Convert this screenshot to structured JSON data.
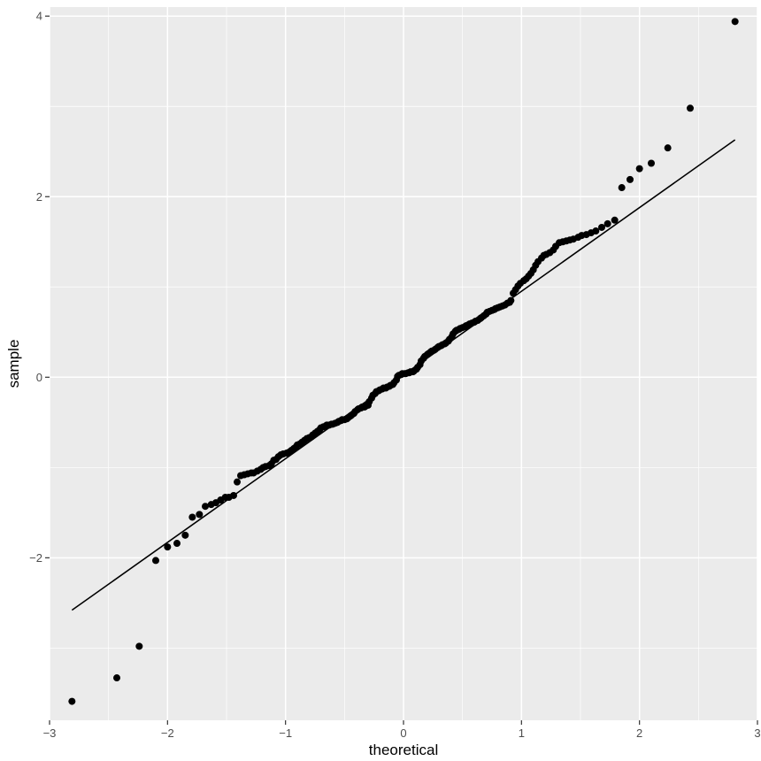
{
  "chart_data": {
    "type": "scatter",
    "subtype": "qq-plot",
    "title": "",
    "xlabel": "theoretical",
    "ylabel": "sample",
    "xlim": [
      -3.0,
      3.0
    ],
    "ylim": [
      -3.8,
      4.1
    ],
    "x_ticks": [
      -3,
      -2,
      -1,
      0,
      1,
      2,
      3
    ],
    "x_tick_labels": [
      "−3",
      "−2",
      "−1",
      "0",
      "1",
      "2",
      "3"
    ],
    "y_ticks": [
      -2,
      0,
      2,
      4
    ],
    "y_tick_labels": [
      "−2",
      "0",
      "2",
      "4"
    ],
    "grid": true,
    "legend": "none",
    "colors": {
      "panel": "#ebebeb",
      "grid": "#ffffff",
      "points": "#000000",
      "line": "#000000"
    },
    "reference_line": {
      "x": [
        -2.81,
        2.81
      ],
      "y": [
        -2.58,
        2.63
      ]
    },
    "points": [
      [
        -2.81,
        -3.59
      ],
      [
        -2.43,
        -3.33
      ],
      [
        -2.24,
        -2.98
      ],
      [
        -2.1,
        -2.03
      ],
      [
        -2.0,
        -1.88
      ],
      [
        -1.92,
        -1.84
      ],
      [
        -1.85,
        -1.75
      ],
      [
        -1.79,
        -1.55
      ],
      [
        -1.73,
        -1.52
      ],
      [
        -1.68,
        -1.43
      ],
      [
        -1.63,
        -1.41
      ],
      [
        -1.59,
        -1.39
      ],
      [
        -1.55,
        -1.36
      ],
      [
        -1.51,
        -1.33
      ],
      [
        -1.48,
        -1.33
      ],
      [
        -1.44,
        -1.31
      ],
      [
        -1.41,
        -1.16
      ],
      [
        -1.38,
        -1.09
      ],
      [
        -1.35,
        -1.08
      ],
      [
        -1.32,
        -1.07
      ],
      [
        -1.29,
        -1.06
      ],
      [
        -1.27,
        -1.06
      ],
      [
        -1.24,
        -1.04
      ],
      [
        -1.21,
        -1.02
      ],
      [
        -1.19,
        -1.0
      ],
      [
        -1.17,
        -0.99
      ],
      [
        -1.14,
        -0.98
      ],
      [
        -1.12,
        -0.96
      ],
      [
        -1.1,
        -0.92
      ],
      [
        -1.08,
        -0.91
      ],
      [
        -1.06,
        -0.88
      ],
      [
        -1.04,
        -0.86
      ],
      [
        -1.02,
        -0.85
      ],
      [
        -0.99,
        -0.84
      ],
      [
        -0.97,
        -0.83
      ],
      [
        -0.95,
        -0.81
      ],
      [
        -0.93,
        -0.79
      ],
      [
        -0.91,
        -0.77
      ],
      [
        -0.9,
        -0.75
      ],
      [
        -0.88,
        -0.74
      ],
      [
        -0.86,
        -0.72
      ],
      [
        -0.84,
        -0.7
      ],
      [
        -0.82,
        -0.68
      ],
      [
        -0.8,
        -0.67
      ],
      [
        -0.78,
        -0.66
      ],
      [
        -0.77,
        -0.64
      ],
      [
        -0.75,
        -0.62
      ],
      [
        -0.73,
        -0.6
      ],
      [
        -0.71,
        -0.58
      ],
      [
        -0.7,
        -0.56
      ],
      [
        -0.68,
        -0.55
      ],
      [
        -0.66,
        -0.54
      ],
      [
        -0.65,
        -0.53
      ],
      [
        -0.63,
        -0.53
      ],
      [
        -0.61,
        -0.52
      ],
      [
        -0.6,
        -0.52
      ],
      [
        -0.58,
        -0.51
      ],
      [
        -0.56,
        -0.5
      ],
      [
        -0.55,
        -0.49
      ],
      [
        -0.53,
        -0.48
      ],
      [
        -0.52,
        -0.47
      ],
      [
        -0.5,
        -0.47
      ],
      [
        -0.48,
        -0.46
      ],
      [
        -0.47,
        -0.45
      ],
      [
        -0.45,
        -0.43
      ],
      [
        -0.44,
        -0.42
      ],
      [
        -0.42,
        -0.4
      ],
      [
        -0.41,
        -0.38
      ],
      [
        -0.39,
        -0.36
      ],
      [
        -0.38,
        -0.35
      ],
      [
        -0.36,
        -0.34
      ],
      [
        -0.35,
        -0.33
      ],
      [
        -0.33,
        -0.33
      ],
      [
        -0.32,
        -0.32
      ],
      [
        -0.3,
        -0.31
      ],
      [
        -0.29,
        -0.27
      ],
      [
        -0.27,
        -0.23
      ],
      [
        -0.26,
        -0.2
      ],
      [
        -0.24,
        -0.18
      ],
      [
        -0.23,
        -0.16
      ],
      [
        -0.21,
        -0.15
      ],
      [
        -0.2,
        -0.14
      ],
      [
        -0.18,
        -0.13
      ],
      [
        -0.17,
        -0.12
      ],
      [
        -0.15,
        -0.12
      ],
      [
        -0.14,
        -0.11
      ],
      [
        -0.12,
        -0.1
      ],
      [
        -0.11,
        -0.09
      ],
      [
        -0.09,
        -0.08
      ],
      [
        -0.08,
        -0.06
      ],
      [
        -0.06,
        -0.03
      ],
      [
        -0.05,
        0.01
      ],
      [
        -0.04,
        0.02
      ],
      [
        -0.02,
        0.03
      ],
      [
        -0.01,
        0.04
      ],
      [
        0.01,
        0.04
      ],
      [
        0.02,
        0.04
      ],
      [
        0.04,
        0.05
      ],
      [
        0.05,
        0.05
      ],
      [
        0.06,
        0.06
      ],
      [
        0.08,
        0.06
      ],
      [
        0.09,
        0.07
      ],
      [
        0.11,
        0.09
      ],
      [
        0.12,
        0.11
      ],
      [
        0.14,
        0.14
      ],
      [
        0.15,
        0.18
      ],
      [
        0.17,
        0.21
      ],
      [
        0.18,
        0.23
      ],
      [
        0.2,
        0.25
      ],
      [
        0.21,
        0.26
      ],
      [
        0.23,
        0.28
      ],
      [
        0.24,
        0.29
      ],
      [
        0.26,
        0.3
      ],
      [
        0.27,
        0.31
      ],
      [
        0.29,
        0.33
      ],
      [
        0.3,
        0.34
      ],
      [
        0.32,
        0.35
      ],
      [
        0.33,
        0.36
      ],
      [
        0.35,
        0.37
      ],
      [
        0.36,
        0.38
      ],
      [
        0.38,
        0.4
      ],
      [
        0.39,
        0.42
      ],
      [
        0.41,
        0.45
      ],
      [
        0.42,
        0.48
      ],
      [
        0.44,
        0.51
      ],
      [
        0.45,
        0.52
      ],
      [
        0.47,
        0.53
      ],
      [
        0.48,
        0.54
      ],
      [
        0.5,
        0.55
      ],
      [
        0.52,
        0.56
      ],
      [
        0.53,
        0.57
      ],
      [
        0.55,
        0.58
      ],
      [
        0.56,
        0.59
      ],
      [
        0.58,
        0.6
      ],
      [
        0.6,
        0.61
      ],
      [
        0.61,
        0.62
      ],
      [
        0.63,
        0.63
      ],
      [
        0.65,
        0.65
      ],
      [
        0.66,
        0.66
      ],
      [
        0.68,
        0.68
      ],
      [
        0.7,
        0.7
      ],
      [
        0.71,
        0.72
      ],
      [
        0.73,
        0.73
      ],
      [
        0.75,
        0.74
      ],
      [
        0.77,
        0.75
      ],
      [
        0.78,
        0.76
      ],
      [
        0.8,
        0.77
      ],
      [
        0.82,
        0.78
      ],
      [
        0.84,
        0.79
      ],
      [
        0.86,
        0.8
      ],
      [
        0.88,
        0.82
      ],
      [
        0.9,
        0.83
      ],
      [
        0.91,
        0.85
      ],
      [
        0.93,
        0.93
      ],
      [
        0.95,
        0.97
      ],
      [
        0.97,
        1.01
      ],
      [
        0.99,
        1.04
      ],
      [
        1.02,
        1.07
      ],
      [
        1.04,
        1.09
      ],
      [
        1.06,
        1.12
      ],
      [
        1.08,
        1.15
      ],
      [
        1.1,
        1.19
      ],
      [
        1.12,
        1.24
      ],
      [
        1.14,
        1.28
      ],
      [
        1.17,
        1.32
      ],
      [
        1.19,
        1.35
      ],
      [
        1.21,
        1.36
      ],
      [
        1.24,
        1.38
      ],
      [
        1.27,
        1.41
      ],
      [
        1.29,
        1.45
      ],
      [
        1.32,
        1.49
      ],
      [
        1.35,
        1.5
      ],
      [
        1.38,
        1.51
      ],
      [
        1.41,
        1.52
      ],
      [
        1.44,
        1.53
      ],
      [
        1.48,
        1.55
      ],
      [
        1.51,
        1.57
      ],
      [
        1.55,
        1.58
      ],
      [
        1.59,
        1.6
      ],
      [
        1.63,
        1.62
      ],
      [
        1.68,
        1.66
      ],
      [
        1.73,
        1.7
      ],
      [
        1.79,
        1.74
      ],
      [
        1.85,
        2.1
      ],
      [
        1.92,
        2.19
      ],
      [
        2.0,
        2.31
      ],
      [
        2.1,
        2.37
      ],
      [
        2.24,
        2.54
      ],
      [
        2.43,
        2.98
      ],
      [
        2.81,
        3.94
      ]
    ]
  }
}
